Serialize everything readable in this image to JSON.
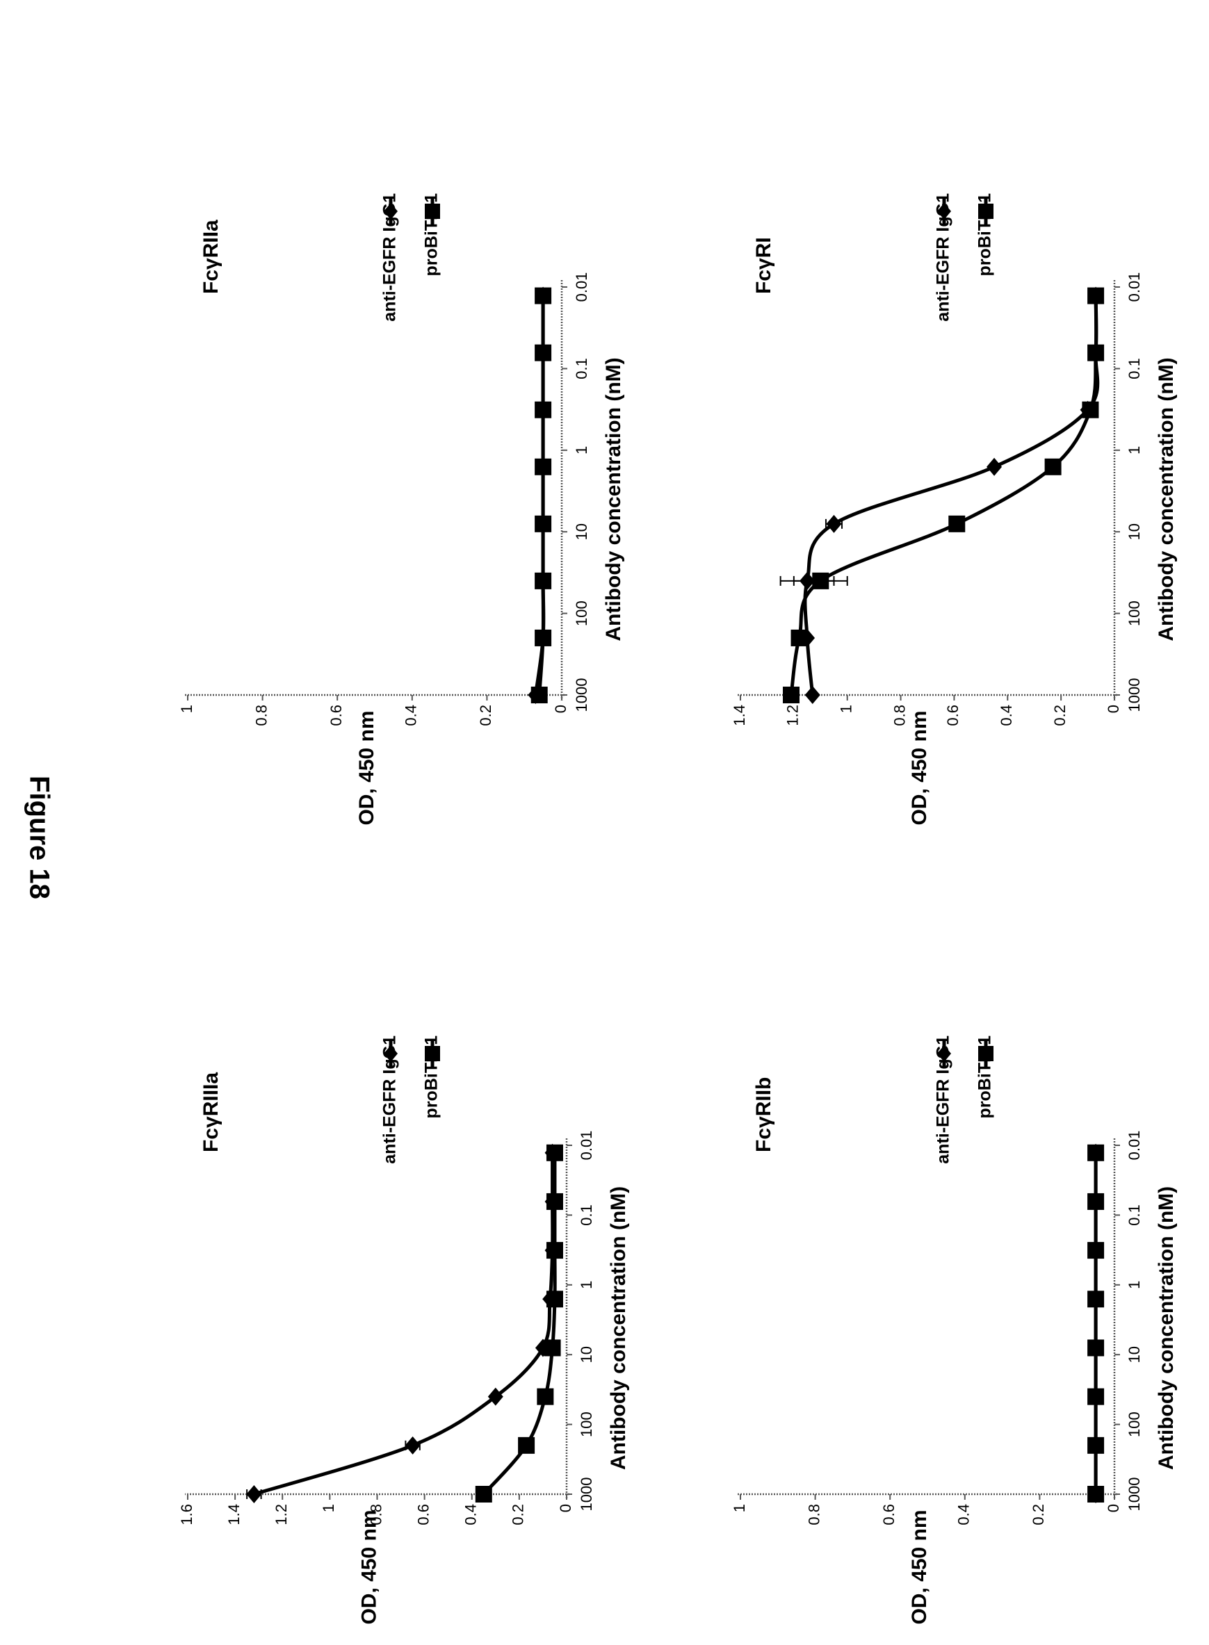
{
  "figure_title": "Figure 18",
  "legend_entries": [
    "anti-EGFR IgG1",
    "proBiTE-1"
  ],
  "chart_data": [
    {
      "type": "line",
      "panel_label": "FcγRIIIa",
      "xlabel": "Antibody concentration (nM)",
      "ylabel": "OD, 450 nm",
      "x_scale": "log",
      "x_ticks": [
        "0.01",
        "0.1",
        "1",
        "10",
        "100",
        "1000"
      ],
      "y_ticks": [
        "0",
        "0.2",
        "0.4",
        "0.6",
        "0.8",
        "1",
        "1.2",
        "1.4",
        "1.6"
      ],
      "ylim": [
        0,
        1.6
      ],
      "x": [
        0.0128,
        0.064,
        0.32,
        1.6,
        8,
        40,
        200,
        1000
      ],
      "series": [
        {
          "name": "anti-EGFR IgG1",
          "marker": "diamond",
          "values": [
            0.06,
            0.06,
            0.06,
            0.07,
            0.1,
            0.3,
            0.65,
            1.32
          ],
          "errors": [
            0,
            0,
            0,
            0,
            0,
            0,
            0.03,
            0.03
          ]
        },
        {
          "name": "proBiTE-1",
          "marker": "square",
          "values": [
            0.05,
            0.05,
            0.05,
            0.05,
            0.06,
            0.09,
            0.17,
            0.35
          ],
          "errors": [
            0,
            0,
            0,
            0,
            0,
            0,
            0,
            0
          ]
        }
      ]
    },
    {
      "type": "line",
      "panel_label": "FcγRIIa",
      "xlabel": "Antibody concentration (nM)",
      "ylabel": "OD, 450 nm",
      "x_scale": "log",
      "x_ticks": [
        "0.01",
        "0.1",
        "1",
        "10",
        "100",
        "1000"
      ],
      "y_ticks": [
        "0",
        "0.2",
        "0.4",
        "0.6",
        "0.8",
        "1"
      ],
      "ylim": [
        0,
        1
      ],
      "x": [
        0.0128,
        0.064,
        0.32,
        1.6,
        8,
        40,
        200,
        1000
      ],
      "series": [
        {
          "name": "anti-EGFR IgG1",
          "marker": "diamond",
          "values": [
            0.05,
            0.05,
            0.05,
            0.05,
            0.05,
            0.05,
            0.05,
            0.07
          ],
          "errors": [
            0,
            0,
            0,
            0,
            0,
            0,
            0,
            0
          ]
        },
        {
          "name": "proBiTE-1",
          "marker": "square",
          "values": [
            0.05,
            0.05,
            0.05,
            0.05,
            0.05,
            0.05,
            0.05,
            0.06
          ],
          "errors": [
            0,
            0,
            0,
            0,
            0,
            0,
            0,
            0
          ]
        }
      ]
    },
    {
      "type": "line",
      "panel_label": "FcγRIIb",
      "xlabel": "Antibody concentration (nM)",
      "ylabel": "OD, 450 nm",
      "x_scale": "log",
      "x_ticks": [
        "0.01",
        "0.1",
        "1",
        "10",
        "100",
        "1000"
      ],
      "y_ticks": [
        "0",
        "0.2",
        "0.4",
        "0.6",
        "0.8",
        "1"
      ],
      "ylim": [
        0,
        1
      ],
      "x": [
        0.0128,
        0.064,
        0.32,
        1.6,
        8,
        40,
        200,
        1000
      ],
      "series": [
        {
          "name": "anti-EGFR IgG1",
          "marker": "diamond",
          "values": [
            0.05,
            0.05,
            0.05,
            0.05,
            0.05,
            0.05,
            0.05,
            0.05
          ],
          "errors": [
            0,
            0,
            0,
            0,
            0,
            0,
            0,
            0
          ]
        },
        {
          "name": "proBiTE-1",
          "marker": "square",
          "values": [
            0.05,
            0.05,
            0.05,
            0.05,
            0.05,
            0.05,
            0.05,
            0.05
          ],
          "errors": [
            0,
            0,
            0,
            0,
            0,
            0,
            0,
            0
          ]
        }
      ]
    },
    {
      "type": "line",
      "panel_label": "FcγRI",
      "xlabel": "Antibody concentration (nM)",
      "ylabel": "OD, 450 nm",
      "x_scale": "log",
      "x_ticks": [
        "0.01",
        "0.1",
        "1",
        "10",
        "100",
        "1000"
      ],
      "y_ticks": [
        "0",
        "0.2",
        "0.4",
        "0.6",
        "0.8",
        "1",
        "1.2",
        "1.4"
      ],
      "ylim": [
        0,
        1.4
      ],
      "x": [
        0.0128,
        0.064,
        0.32,
        1.6,
        8,
        40,
        200,
        1000
      ],
      "series": [
        {
          "name": "anti-EGFR IgG1",
          "marker": "diamond",
          "values": [
            0.07,
            0.07,
            0.1,
            0.45,
            1.05,
            1.15,
            1.15,
            1.13
          ],
          "errors": [
            0,
            0,
            0,
            0,
            0.03,
            0.1,
            0,
            0
          ]
        },
        {
          "name": "proBiTE-1",
          "marker": "square",
          "values": [
            0.07,
            0.07,
            0.09,
            0.23,
            0.59,
            1.1,
            1.18,
            1.21
          ],
          "errors": [
            0,
            0,
            0,
            0,
            0,
            0.1,
            0,
            0
          ]
        }
      ]
    }
  ]
}
